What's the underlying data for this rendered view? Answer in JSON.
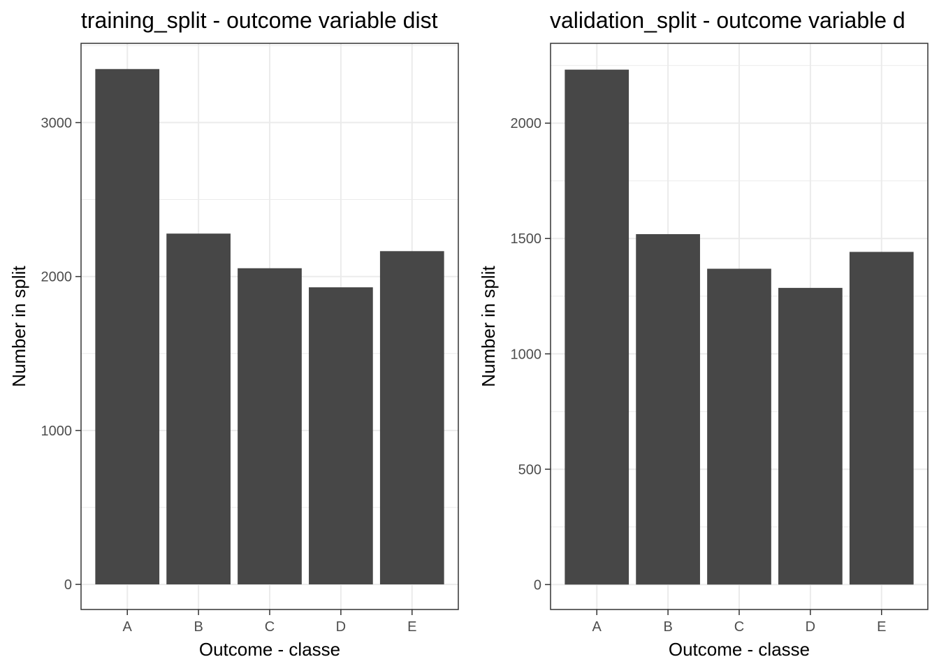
{
  "colors": {
    "bar": "#474747",
    "grid": "#ebebeb",
    "panel_border": "#333333",
    "tick_text": "#4d4d4d"
  },
  "chart_data": [
    {
      "type": "bar",
      "title": "training_split - outcome variable dist",
      "xlabel": "Outcome - classe",
      "ylabel": "Number in split",
      "categories": [
        "A",
        "B",
        "C",
        "D",
        "E"
      ],
      "values": [
        3348,
        2279,
        2054,
        1930,
        2165
      ],
      "ylim": [
        -163,
        3515
      ],
      "yticks": [
        "0",
        "1000",
        "2000",
        "3000"
      ],
      "grid": true,
      "legend": "none"
    },
    {
      "type": "bar",
      "title": "validation_split - outcome variable d",
      "xlabel": "Outcome - classe",
      "ylabel": "Number in split",
      "categories": [
        "A",
        "B",
        "C",
        "D",
        "E"
      ],
      "values": [
        2232,
        1519,
        1369,
        1286,
        1442
      ],
      "ylim": [
        -108,
        2346
      ],
      "yticks": [
        "0",
        "500",
        "1000",
        "1500",
        "2000"
      ],
      "grid": true,
      "legend": "none"
    }
  ]
}
